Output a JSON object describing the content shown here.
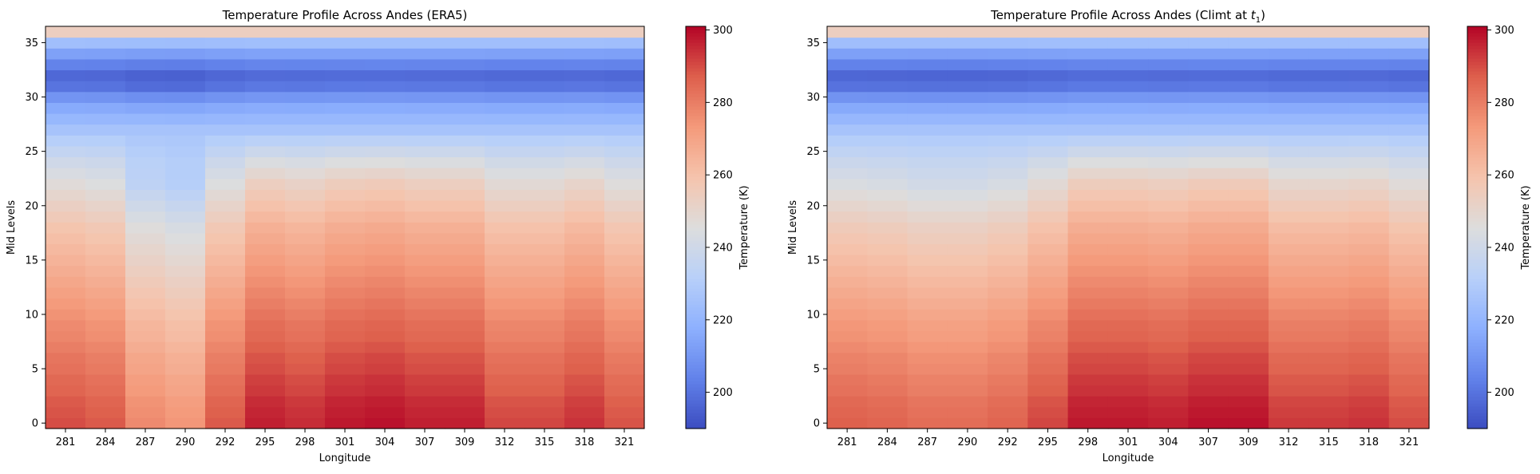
{
  "chart_data": [
    {
      "type": "heatmap",
      "title": "Temperature Profile Across Andes (ERA5)",
      "xlabel": "Longitude",
      "ylabel": "Mid Levels",
      "x_ticks": [
        "281",
        "284",
        "287",
        "290",
        "292",
        "295",
        "298",
        "301",
        "304",
        "307",
        "309",
        "312",
        "315",
        "318",
        "321"
      ],
      "y_ticks": [
        "0",
        "5",
        "10",
        "15",
        "20",
        "25",
        "30",
        "35"
      ],
      "ylim": [
        -0.5,
        36.5
      ],
      "n_columns": 15,
      "n_levels": 37,
      "colormap": "coolwarm",
      "colorbar": {
        "label": "Temperature (K)",
        "range": [
          190,
          301
        ],
        "ticks": [
          "200",
          "220",
          "240",
          "260",
          "280",
          "300"
        ]
      },
      "column_offsets_K": [
        2,
        0,
        -11,
        -14,
        0,
        9,
        7,
        10,
        11,
        9,
        9,
        3,
        3,
        6,
        1
      ],
      "level_profile_K": [
        288,
        287,
        286,
        284,
        283,
        281,
        280,
        278,
        276,
        275,
        273,
        271,
        269,
        267,
        265,
        263,
        261,
        259,
        257,
        254,
        251,
        248,
        245,
        242,
        239,
        235,
        231,
        226,
        221,
        216,
        209,
        200,
        197,
        204,
        213,
        224,
        254
      ]
    },
    {
      "type": "heatmap",
      "title_prefix": "Temperature Profile Across Andes (Climt at ",
      "title_var": "t",
      "title_sub": "1",
      "title_suffix": ")",
      "xlabel": "Longitude",
      "ylabel": "Mid Levels",
      "x_ticks": [
        "281",
        "284",
        "287",
        "290",
        "292",
        "295",
        "298",
        "301",
        "304",
        "307",
        "309",
        "312",
        "315",
        "318",
        "321"
      ],
      "y_ticks": [
        "0",
        "5",
        "10",
        "15",
        "20",
        "25",
        "30",
        "35"
      ],
      "ylim": [
        -0.5,
        36.5
      ],
      "n_columns": 15,
      "n_levels": 37,
      "colormap": "coolwarm",
      "colorbar": {
        "label": "Temperature (K)",
        "range": [
          190,
          301
        ],
        "ticks": [
          "200",
          "220",
          "240",
          "260",
          "280",
          "300"
        ]
      },
      "column_offsets_K": [
        -1,
        -2,
        -4,
        -4,
        -2,
        3,
        10,
        10,
        9,
        11,
        11,
        5,
        5,
        6,
        2
      ],
      "level_profile_K": [
        288,
        287,
        286,
        284,
        283,
        281,
        280,
        278,
        276,
        275,
        273,
        271,
        269,
        267,
        265,
        263,
        261,
        259,
        257,
        254,
        251,
        248,
        245,
        242,
        239,
        235,
        231,
        226,
        221,
        216,
        209,
        200,
        197,
        204,
        213,
        224,
        254
      ]
    }
  ]
}
